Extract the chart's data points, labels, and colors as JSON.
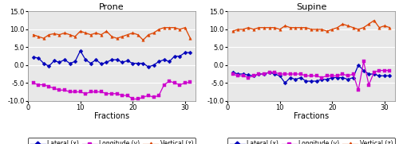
{
  "prone_lateral": [
    2.2,
    2.0,
    0.5,
    -0.3,
    1.2,
    0.8,
    1.5,
    0.5,
    1.0,
    4.0,
    1.5,
    0.5,
    1.5,
    0.3,
    0.8,
    1.5,
    1.5,
    0.8,
    1.2,
    0.5,
    0.5,
    0.5,
    -0.5,
    0.0,
    1.0,
    1.5,
    1.0,
    2.5,
    2.5,
    3.5,
    3.5
  ],
  "prone_longitude": [
    -5.0,
    -5.5,
    -5.5,
    -6.0,
    -6.5,
    -7.0,
    -7.0,
    -7.5,
    -7.5,
    -7.5,
    -8.0,
    -7.5,
    -7.5,
    -7.5,
    -8.0,
    -8.0,
    -8.0,
    -8.5,
    -8.5,
    -9.5,
    -9.5,
    -9.0,
    -8.5,
    -9.0,
    -8.5,
    -5.5,
    -4.5,
    -5.0,
    -5.5,
    -5.0,
    -4.8
  ],
  "prone_vertical": [
    8.5,
    8.0,
    7.5,
    8.5,
    8.8,
    8.5,
    9.0,
    8.5,
    8.0,
    9.5,
    9.0,
    8.5,
    9.0,
    8.5,
    9.5,
    8.0,
    7.5,
    8.0,
    8.5,
    9.0,
    8.5,
    7.0,
    8.5,
    9.0,
    10.0,
    10.5,
    10.5,
    10.5,
    10.0,
    10.5,
    7.5
  ],
  "supine_lateral": [
    -2.0,
    -2.5,
    -2.5,
    -2.8,
    -3.0,
    -2.5,
    -2.5,
    -2.0,
    -2.5,
    -3.0,
    -5.0,
    -3.5,
    -4.0,
    -3.5,
    -4.5,
    -4.5,
    -4.5,
    -4.0,
    -4.0,
    -3.5,
    -3.5,
    -3.5,
    -4.0,
    -3.5,
    0.0,
    -1.5,
    -2.5,
    -2.5,
    -3.0,
    -3.0,
    -3.0
  ],
  "supine_longitude": [
    -2.5,
    -3.0,
    -3.0,
    -3.5,
    -3.0,
    -2.5,
    -2.5,
    -2.0,
    -2.0,
    -2.5,
    -2.5,
    -2.5,
    -2.5,
    -2.5,
    -3.0,
    -3.0,
    -3.0,
    -3.5,
    -3.0,
    -3.0,
    -3.0,
    -2.5,
    -3.0,
    -2.5,
    -7.0,
    1.0,
    -5.5,
    -2.0,
    -1.5,
    -1.5,
    -1.5
  ],
  "supine_vertical": [
    9.5,
    10.0,
    10.0,
    10.5,
    10.0,
    10.5,
    10.5,
    10.5,
    10.5,
    10.0,
    11.0,
    10.5,
    10.5,
    10.5,
    10.5,
    10.0,
    10.0,
    10.0,
    9.5,
    10.0,
    10.5,
    11.5,
    11.0,
    10.5,
    10.0,
    10.5,
    11.5,
    12.5,
    10.5,
    11.0,
    10.5
  ],
  "fractions": [
    1,
    2,
    3,
    4,
    5,
    6,
    7,
    8,
    9,
    10,
    11,
    12,
    13,
    14,
    15,
    16,
    17,
    18,
    19,
    20,
    21,
    22,
    23,
    24,
    25,
    26,
    27,
    28,
    29,
    30,
    31
  ],
  "prone_title": "Prone",
  "supine_title": "Supine",
  "xlabel": "Fractions",
  "ylim": [
    -10.0,
    15.0
  ],
  "yticks": [
    -10.0,
    -5.0,
    0.0,
    5.0,
    10.0,
    15.0
  ],
  "xticks": [
    0,
    10,
    20,
    30
  ],
  "color_lateral": "#0000bb",
  "color_longitude": "#cc00cc",
  "color_vertical": "#dd4400",
  "bg_color": "#e8e8e8",
  "legend_lateral": "Lateral (x)",
  "legend_longitude": "Longitude (y)",
  "legend_vertical": "Vertical (z)"
}
